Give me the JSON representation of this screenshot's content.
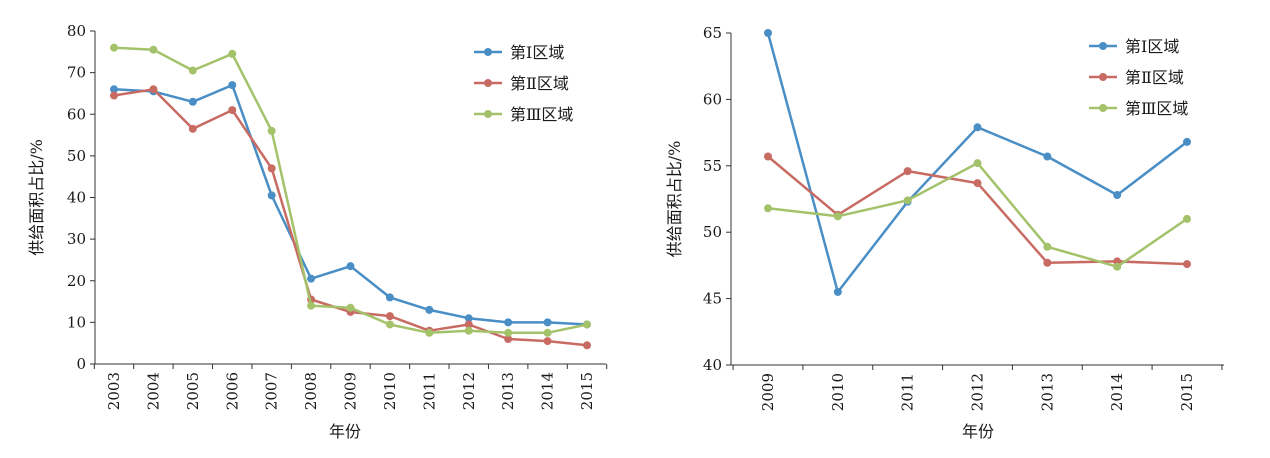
{
  "colors": {
    "region1": "#4a8ec6",
    "region2": "#c86b63",
    "region3": "#a3c26a",
    "axis": "#333333"
  },
  "chart_data": [
    {
      "type": "line",
      "title": "",
      "xlabel": "年份",
      "ylabel": "供给面积占比/%",
      "ylim": [
        0,
        80
      ],
      "yticks": [
        0,
        10,
        20,
        30,
        40,
        50,
        60,
        70,
        80
      ],
      "grid": false,
      "legend_position": "top-right",
      "categories": [
        "2003",
        "2004",
        "2005",
        "2006",
        "2007",
        "2008",
        "2009",
        "2010",
        "2011",
        "2012",
        "2013",
        "2014",
        "2015"
      ],
      "series": [
        {
          "name": "第Ⅰ区域",
          "color": "#4a8ec6",
          "values": [
            66,
            65.5,
            63,
            67,
            40.5,
            20.5,
            23.5,
            16,
            13,
            11,
            10,
            10,
            9.5
          ]
        },
        {
          "name": "第Ⅱ区域",
          "color": "#c86b63",
          "values": [
            64.5,
            66,
            56.5,
            61,
            47,
            15.5,
            12.5,
            11.5,
            8,
            9.5,
            6,
            5.5,
            4.5
          ]
        },
        {
          "name": "第Ⅲ区域",
          "color": "#a3c26a",
          "values": [
            76,
            75.5,
            70.5,
            74.5,
            56,
            14,
            13.5,
            9.5,
            7.5,
            8,
            7.5,
            7.5,
            9.5
          ]
        }
      ]
    },
    {
      "type": "line",
      "title": "",
      "xlabel": "年份",
      "ylabel": "供给面积占比/%",
      "ylim": [
        40,
        65
      ],
      "yticks": [
        40,
        45,
        50,
        55,
        60,
        65
      ],
      "grid": false,
      "legend_position": "top-right",
      "categories": [
        "2009",
        "2010",
        "2011",
        "2012",
        "2013",
        "2014",
        "2015"
      ],
      "series": [
        {
          "name": "第Ⅰ区域",
          "color": "#4a8ec6",
          "values": [
            65,
            45.5,
            52.3,
            57.9,
            55.7,
            52.8,
            56.8
          ]
        },
        {
          "name": "第Ⅱ区域",
          "color": "#c86b63",
          "values": [
            55.7,
            51.3,
            54.6,
            53.7,
            47.7,
            47.8,
            47.6
          ]
        },
        {
          "name": "第Ⅲ区域",
          "color": "#a3c26a",
          "values": [
            51.8,
            51.2,
            52.4,
            55.2,
            48.9,
            47.4,
            51.0
          ]
        }
      ]
    }
  ]
}
